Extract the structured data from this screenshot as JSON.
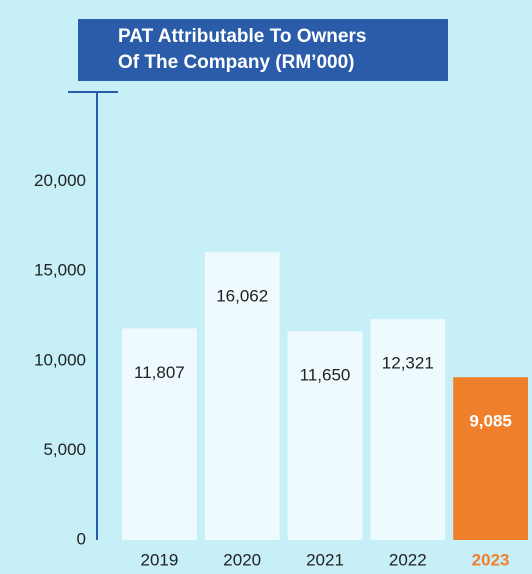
{
  "chart_data": {
    "type": "bar",
    "title": [
      "PAT Attributable To Owners",
      "Of The Company (RM’000)"
    ],
    "categories": [
      "2019",
      "2020",
      "2021",
      "2022",
      "2023"
    ],
    "values": [
      11807,
      16062,
      11650,
      12321,
      9085
    ],
    "value_labels": [
      "11,807",
      "16,062",
      "11,650",
      "12,321",
      "9,085"
    ],
    "colors": [
      "#eefafd",
      "#eefafd",
      "#eefafd",
      "#eefafd",
      "#f07f2c"
    ],
    "ylim": [
      0,
      25000
    ],
    "yticks": [
      0,
      {
        "value": 5000,
        "label": "5,000"
      },
      {
        "value": 10000,
        "label": "10,000"
      },
      {
        "value": 15000,
        "label": "15,000"
      },
      {
        "value": 20000,
        "label": "20,000"
      }
    ]
  }
}
